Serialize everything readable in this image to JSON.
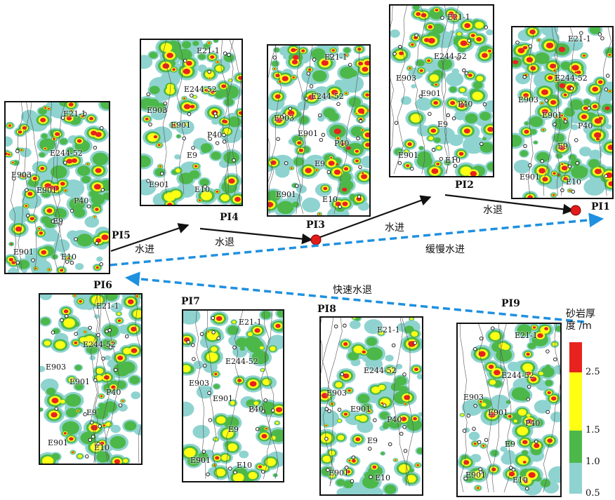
{
  "panels": [
    {
      "id": "PI5",
      "label": "PI5",
      "wells": [
        "E21-1",
        "E244-52",
        "E903",
        "E901",
        "P40",
        "E9",
        "E901",
        "E10"
      ],
      "intensity": 0.85
    },
    {
      "id": "PI4",
      "label": "PI4",
      "wells": [
        "E21-1",
        "E244-52",
        "E903",
        "E901",
        "P40",
        "E9",
        "E901",
        "E10"
      ],
      "intensity": 0.55
    },
    {
      "id": "PI3",
      "label": "PI3",
      "wells": [
        "E21-1",
        "E244-52",
        "E903",
        "E901",
        "P40",
        "E9",
        "E901",
        "E10"
      ],
      "intensity": 0.9
    },
    {
      "id": "PI2",
      "label": "PI2",
      "wells": [
        "E21-1",
        "E244-52",
        "E903",
        "E901",
        "P40",
        "E9",
        "E901",
        "E10"
      ],
      "intensity": 0.6
    },
    {
      "id": "PI1",
      "label": "PI1",
      "wells": [
        "E21-1",
        "E244-52",
        "E903",
        "E901",
        "P40",
        "E9",
        "E901",
        "E10"
      ],
      "intensity": 0.9
    },
    {
      "id": "PI6",
      "label": "PI6",
      "wells": [
        "E21-1",
        "E244-52",
        "E903",
        "E901",
        "P40",
        "E9",
        "E901",
        "E10"
      ],
      "intensity": 0.5
    },
    {
      "id": "PI7",
      "label": "PI7",
      "wells": [
        "E21-1",
        "E244-52",
        "E903",
        "E901",
        "P40",
        "E9",
        "E901",
        "E10"
      ],
      "intensity": 0.3
    },
    {
      "id": "PI8",
      "label": "PI8",
      "wells": [
        "E21-1",
        "E244-52",
        "E903",
        "E901",
        "P40",
        "E9",
        "E901",
        "E10"
      ],
      "intensity": 0.45
    },
    {
      "id": "PI9",
      "label": "PI9",
      "wells": [
        "E21-1",
        "E244-52",
        "E903",
        "E901",
        "P40",
        "E9",
        "E901",
        "E10"
      ],
      "intensity": 0.5
    }
  ],
  "annotations": {
    "transgress_1": "水进",
    "regress_1": "水退",
    "transgress_2": "水进",
    "regress_2": "水退",
    "slow_transgression": "缓慢水进",
    "fast_regression": "快速水退"
  },
  "legend": {
    "title_line1": "砂岩厚",
    "title_line2": "度 /m",
    "classes": [
      {
        "color": "#e8231f",
        "from": 2.5,
        "to": null
      },
      {
        "color": "#ffff14",
        "from": 1.5,
        "to": 2.5
      },
      {
        "color": "#4db84a",
        "from": 1.0,
        "to": 1.5
      },
      {
        "color": "#8ed3d0",
        "from": 0.5,
        "to": 1.0
      }
    ],
    "ticks": [
      "2.5",
      "1.5",
      "1.0",
      "0.5"
    ]
  },
  "colors": {
    "sand_thick": "#e8231f",
    "sand_mid": "#ffff14",
    "sand_thin": "#4db84a",
    "sand_min": "#8ed3d0",
    "arrow_solid": "#111111",
    "arrow_dashed": "#1e90e0",
    "marker": "#e21b1b"
  }
}
